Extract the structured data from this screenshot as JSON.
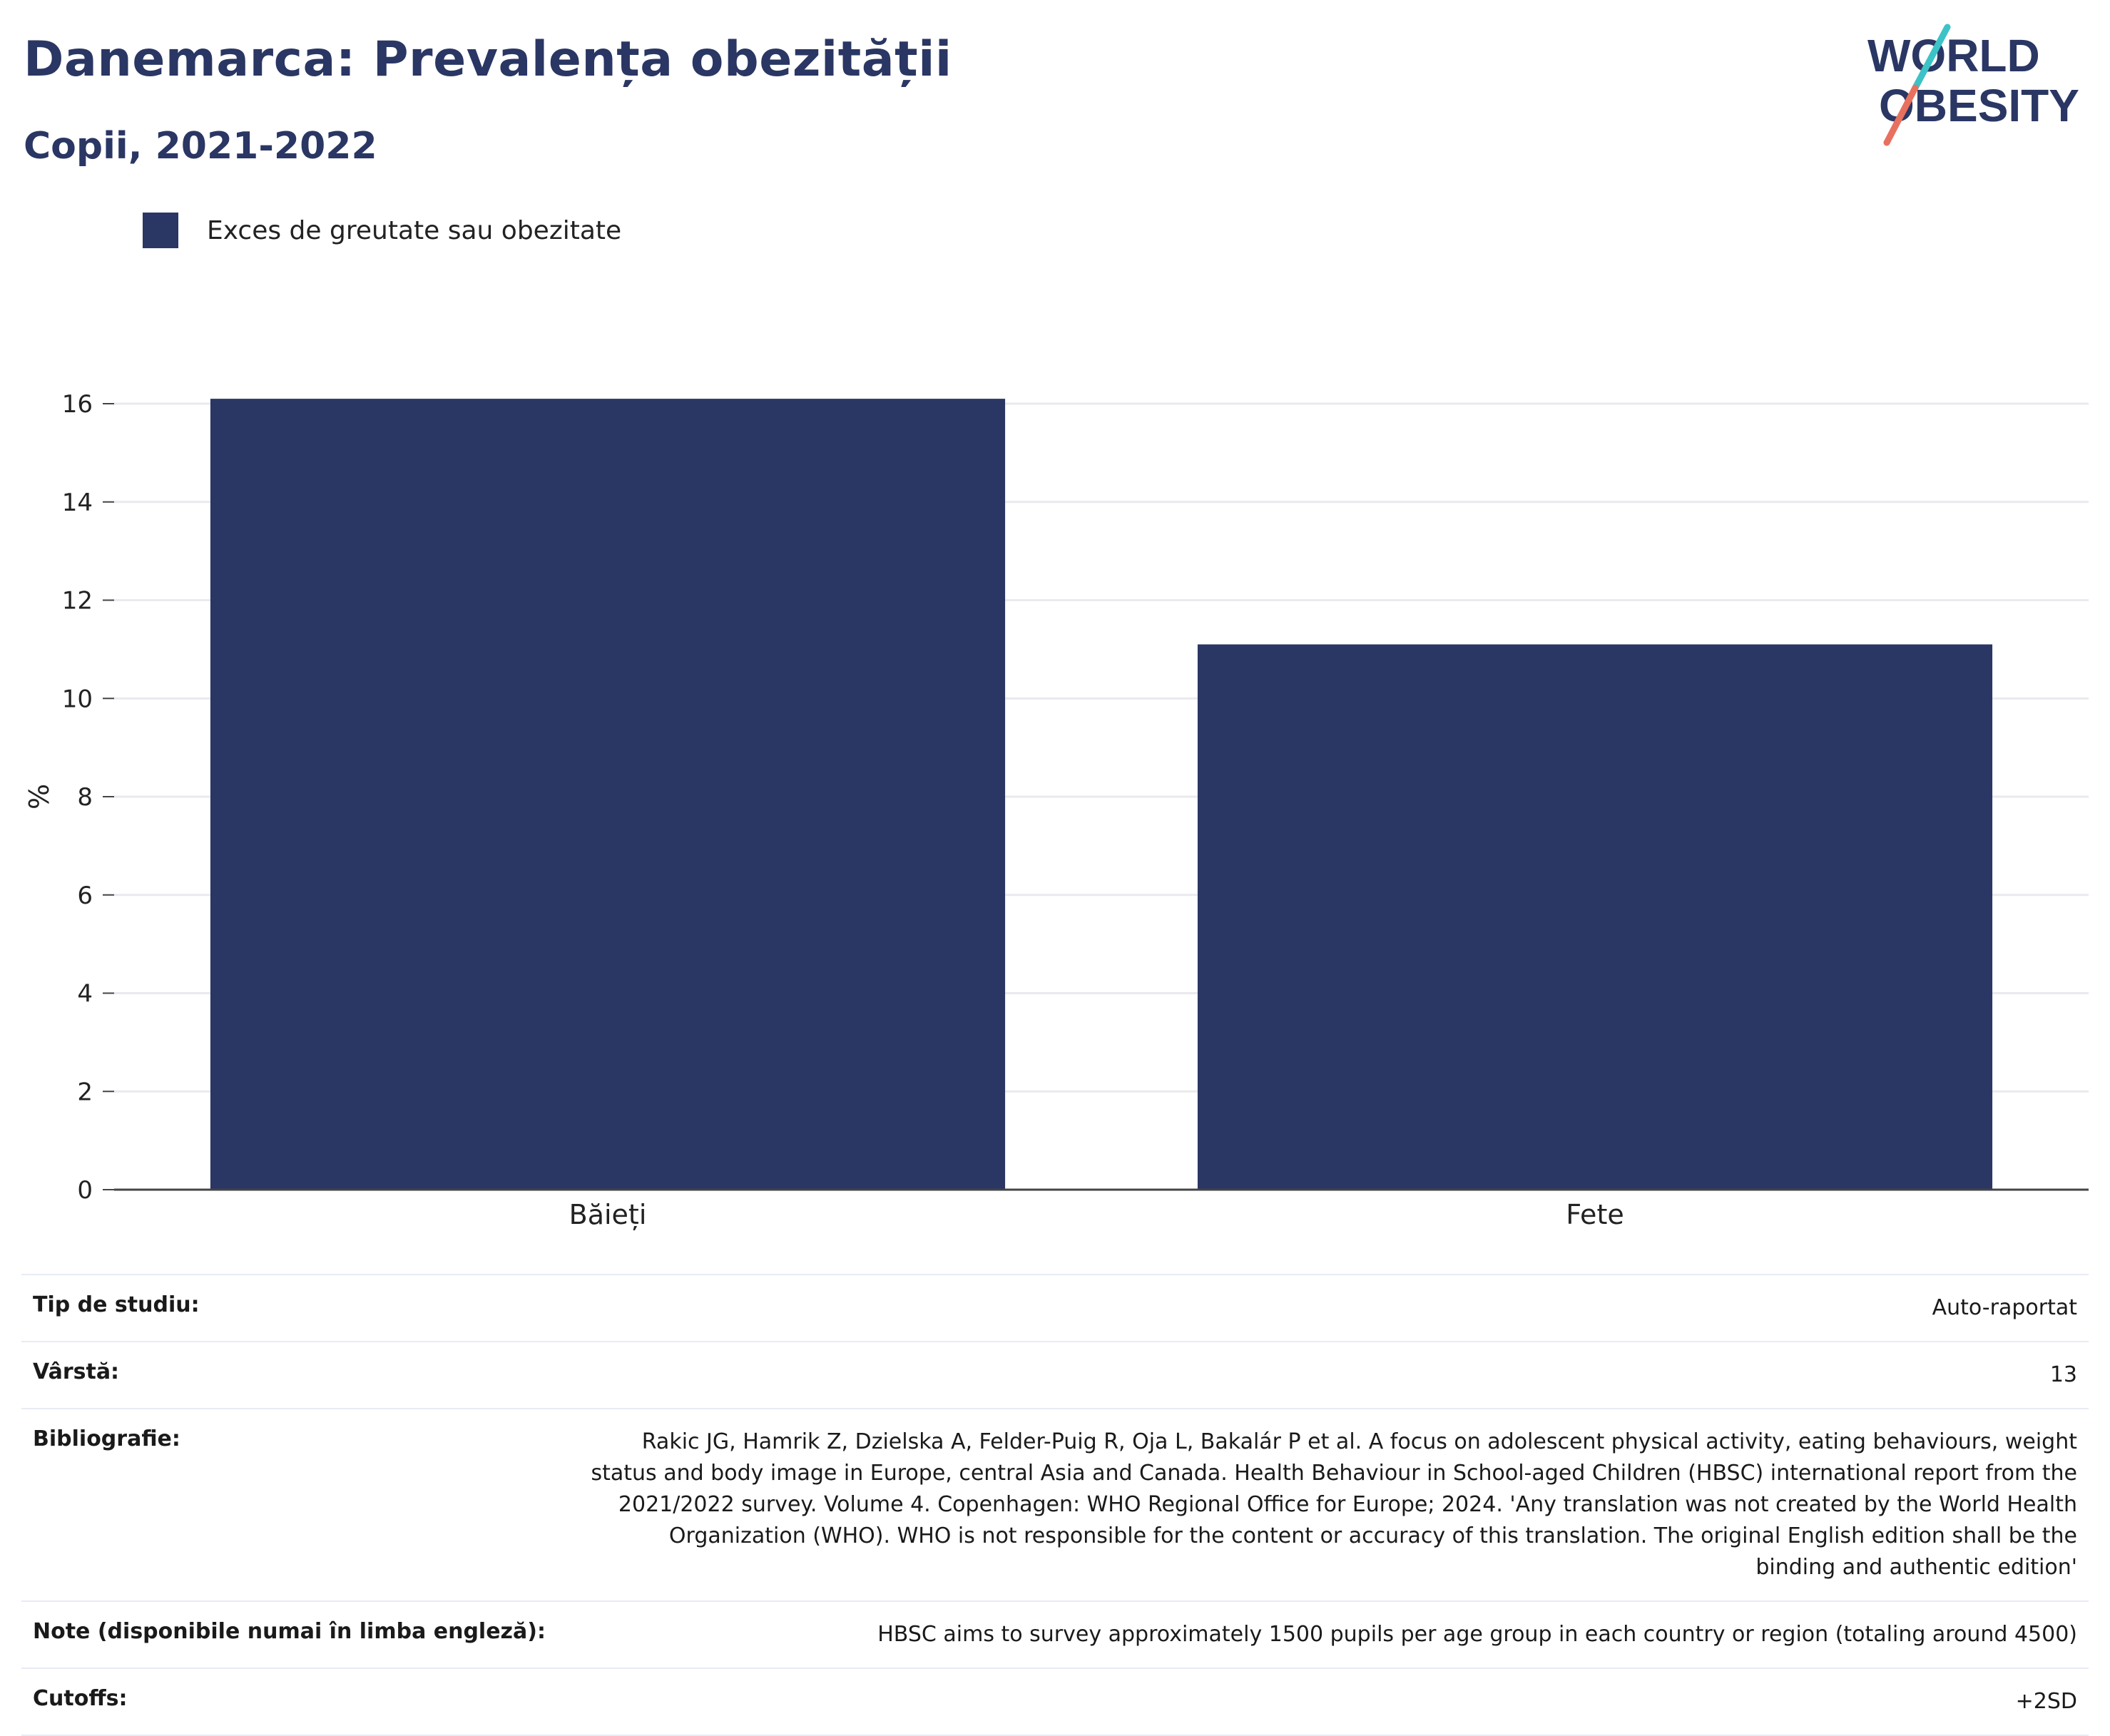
{
  "header": {
    "title": "Danemarca: Prevalența obezității",
    "subtitle": "Copii, 2021-2022",
    "logo_line1": "WORLD",
    "logo_line2": "OBESITY"
  },
  "colors": {
    "bar": "#2a3663",
    "title": "#2a3663",
    "grid": "#e9e9ef",
    "logo_teal": "#3cc3c7",
    "logo_coral": "#e8705e"
  },
  "legend": {
    "label": "Exces de greutate sau obezitate"
  },
  "chart_data": {
    "type": "bar",
    "title": "",
    "xlabel": "",
    "ylabel": "%",
    "categories": [
      "Băieți",
      "Fete"
    ],
    "series": [
      {
        "name": "Exces de greutate sau obezitate",
        "values": [
          16.1,
          11.1
        ]
      }
    ],
    "ylim": [
      0,
      16
    ],
    "yticks": [
      0,
      2,
      4,
      6,
      8,
      10,
      12,
      14,
      16
    ],
    "grid": true,
    "legend_position": "top-left"
  },
  "info": {
    "rows": [
      {
        "key": "Tip de studiu:",
        "value": "Auto-raportat"
      },
      {
        "key": "Vârstă:",
        "value": "13"
      },
      {
        "key": "Bibliografie:",
        "value": "Rakic JG, Hamrik Z, Dzielska A, Felder-Puig R, Oja L, Bakalár P et al. A focus on adolescent physical activity, eating behaviours, weight status and body image in Europe, central Asia and Canada. Health Behaviour in School-aged Children (HBSC) international report from the 2021/2022 survey. Volume 4. Copenhagen: WHO Regional Office for Europe; 2024. 'Any translation was not created by the World Health Organization (WHO). WHO is not responsible for the content or accuracy of this translation. The original English edition shall be the binding and authentic edition'"
      },
      {
        "key": "Note (disponibile numai în limba engleză):",
        "value": "HBSC aims to survey approximately 1500 pupils per age group in each country or region (totaling around 4500)"
      },
      {
        "key": "Cutoffs:",
        "value": "+2SD"
      }
    ]
  }
}
